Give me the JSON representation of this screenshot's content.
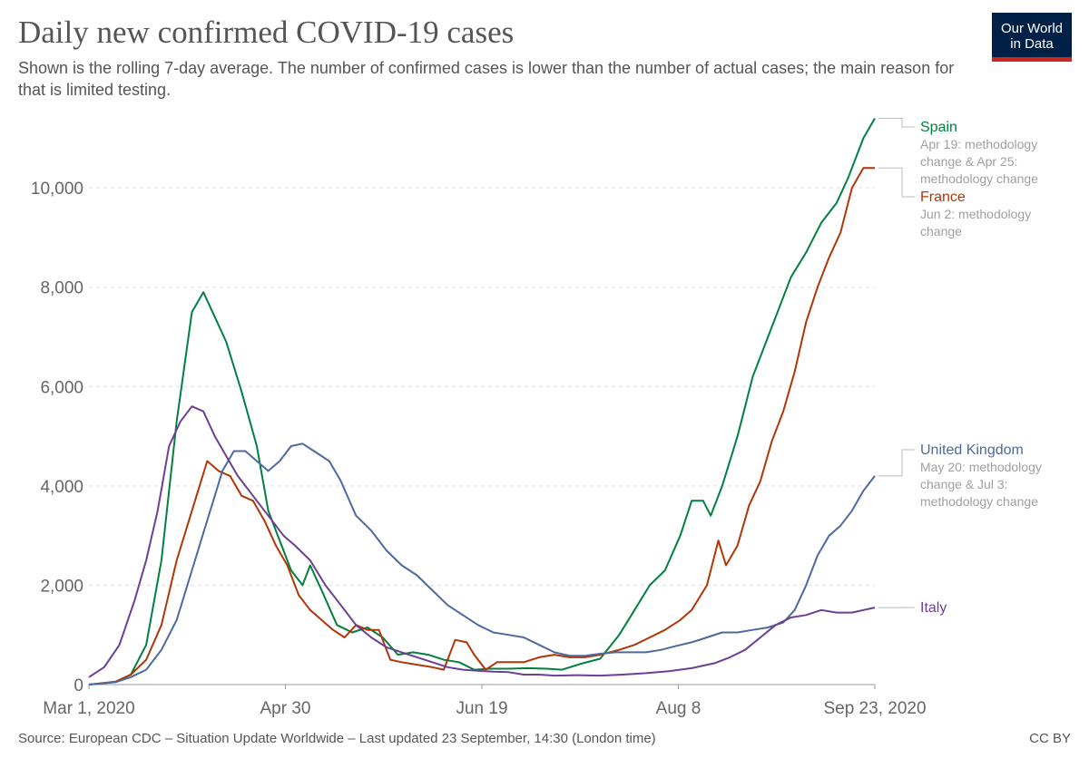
{
  "header": {
    "title": "Daily new confirmed COVID-19 cases",
    "subtitle": "Shown is the rolling 7-day average. The number of confirmed cases is lower than the number of actual cases; the main reason for that is limited testing."
  },
  "logo": {
    "line1": "Our World",
    "line2": "in Data",
    "bg_color": "#002147",
    "accent_color": "#ce261e"
  },
  "footer": {
    "source": "Source: European CDC – Situation Update Worldwide – Last updated 23 September, 14:30 (London time)",
    "license": "CC BY"
  },
  "chart_data": {
    "type": "line",
    "title": "Daily new confirmed COVID-19 cases",
    "xlabel": "",
    "ylabel": "",
    "x_tick_labels": [
      "Mar 1, 2020",
      "Apr 30",
      "Jun 19",
      "Aug 8",
      "Sep 23, 2020"
    ],
    "y_ticks": [
      0,
      2000,
      4000,
      6000,
      8000,
      10000
    ],
    "y_tick_labels": [
      "0",
      "2,000",
      "4,000",
      "6,000",
      "8,000",
      "10,000"
    ],
    "ylim": [
      0,
      11500
    ],
    "xlim": [
      "2020-03-01",
      "2020-09-23"
    ],
    "grid": true,
    "legend": "line-end labels at right",
    "series": [
      {
        "name": "Spain",
        "color": "#00813f",
        "annotation": [
          "Apr 19: methodology",
          "change & Apr 25:",
          "methodology change"
        ],
        "points": [
          [
            "2020-03-01",
            0
          ],
          [
            "2020-03-08",
            50
          ],
          [
            "2020-03-12",
            200
          ],
          [
            "2020-03-16",
            800
          ],
          [
            "2020-03-20",
            2500
          ],
          [
            "2020-03-24",
            5300
          ],
          [
            "2020-03-28",
            7500
          ],
          [
            "2020-03-31",
            7900
          ],
          [
            "2020-04-03",
            7400
          ],
          [
            "2020-04-06",
            6900
          ],
          [
            "2020-04-10",
            5900
          ],
          [
            "2020-04-14",
            4800
          ],
          [
            "2020-04-17",
            3500
          ],
          [
            "2020-04-20",
            2900
          ],
          [
            "2020-04-23",
            2300
          ],
          [
            "2020-04-26",
            2000
          ],
          [
            "2020-04-28",
            2400
          ],
          [
            "2020-05-01",
            1900
          ],
          [
            "2020-05-05",
            1200
          ],
          [
            "2020-05-09",
            1050
          ],
          [
            "2020-05-13",
            1150
          ],
          [
            "2020-05-17",
            950
          ],
          [
            "2020-05-21",
            600
          ],
          [
            "2020-05-25",
            650
          ],
          [
            "2020-05-29",
            600
          ],
          [
            "2020-06-02",
            500
          ],
          [
            "2020-06-06",
            450
          ],
          [
            "2020-06-10",
            300
          ],
          [
            "2020-06-14",
            320
          ],
          [
            "2020-06-19",
            320
          ],
          [
            "2020-06-24",
            330
          ],
          [
            "2020-06-29",
            320
          ],
          [
            "2020-07-03",
            300
          ],
          [
            "2020-07-08",
            420
          ],
          [
            "2020-07-13",
            520
          ],
          [
            "2020-07-18",
            1000
          ],
          [
            "2020-07-22",
            1500
          ],
          [
            "2020-07-26",
            2000
          ],
          [
            "2020-07-30",
            2300
          ],
          [
            "2020-08-03",
            3000
          ],
          [
            "2020-08-06",
            3700
          ],
          [
            "2020-08-09",
            3700
          ],
          [
            "2020-08-11",
            3400
          ],
          [
            "2020-08-14",
            4000
          ],
          [
            "2020-08-18",
            5000
          ],
          [
            "2020-08-22",
            6200
          ],
          [
            "2020-08-26",
            7000
          ],
          [
            "2020-08-29",
            7600
          ],
          [
            "2020-09-01",
            8200
          ],
          [
            "2020-09-05",
            8700
          ],
          [
            "2020-09-09",
            9300
          ],
          [
            "2020-09-13",
            9700
          ],
          [
            "2020-09-16",
            10200
          ],
          [
            "2020-09-20",
            11000
          ],
          [
            "2020-09-23",
            11400
          ]
        ]
      },
      {
        "name": "France",
        "color": "#b13507",
        "annotation": [
          "Jun 2: methodology",
          "change"
        ],
        "points": [
          [
            "2020-03-01",
            0
          ],
          [
            "2020-03-08",
            60
          ],
          [
            "2020-03-12",
            200
          ],
          [
            "2020-03-16",
            500
          ],
          [
            "2020-03-20",
            1200
          ],
          [
            "2020-03-24",
            2500
          ],
          [
            "2020-03-28",
            3500
          ],
          [
            "2020-04-01",
            4500
          ],
          [
            "2020-04-04",
            4300
          ],
          [
            "2020-04-07",
            4200
          ],
          [
            "2020-04-10",
            3800
          ],
          [
            "2020-04-13",
            3700
          ],
          [
            "2020-04-16",
            3300
          ],
          [
            "2020-04-19",
            2800
          ],
          [
            "2020-04-22",
            2400
          ],
          [
            "2020-04-25",
            1800
          ],
          [
            "2020-04-28",
            1500
          ],
          [
            "2020-05-01",
            1300
          ],
          [
            "2020-05-04",
            1100
          ],
          [
            "2020-05-07",
            950
          ],
          [
            "2020-05-10",
            1200
          ],
          [
            "2020-05-13",
            1100
          ],
          [
            "2020-05-16",
            1100
          ],
          [
            "2020-05-19",
            500
          ],
          [
            "2020-05-22",
            450
          ],
          [
            "2020-05-26",
            400
          ],
          [
            "2020-05-30",
            350
          ],
          [
            "2020-06-02",
            300
          ],
          [
            "2020-06-05",
            900
          ],
          [
            "2020-06-08",
            850
          ],
          [
            "2020-06-10",
            600
          ],
          [
            "2020-06-13",
            300
          ],
          [
            "2020-06-16",
            450
          ],
          [
            "2020-06-19",
            450
          ],
          [
            "2020-06-23",
            450
          ],
          [
            "2020-06-27",
            550
          ],
          [
            "2020-07-01",
            600
          ],
          [
            "2020-07-05",
            550
          ],
          [
            "2020-07-09",
            550
          ],
          [
            "2020-07-13",
            600
          ],
          [
            "2020-07-18",
            700
          ],
          [
            "2020-07-22",
            800
          ],
          [
            "2020-07-26",
            950
          ],
          [
            "2020-07-30",
            1100
          ],
          [
            "2020-08-03",
            1300
          ],
          [
            "2020-08-06",
            1500
          ],
          [
            "2020-08-10",
            2000
          ],
          [
            "2020-08-13",
            2900
          ],
          [
            "2020-08-15",
            2400
          ],
          [
            "2020-08-18",
            2800
          ],
          [
            "2020-08-21",
            3600
          ],
          [
            "2020-08-24",
            4100
          ],
          [
            "2020-08-27",
            4900
          ],
          [
            "2020-08-30",
            5500
          ],
          [
            "2020-09-02",
            6300
          ],
          [
            "2020-09-05",
            7300
          ],
          [
            "2020-09-08",
            8000
          ],
          [
            "2020-09-11",
            8600
          ],
          [
            "2020-09-14",
            9100
          ],
          [
            "2020-09-17",
            10000
          ],
          [
            "2020-09-20",
            10400
          ],
          [
            "2020-09-23",
            10400
          ]
        ]
      },
      {
        "name": "United Kingdom",
        "color": "#4c6a9c",
        "annotation": [
          "May 20: methodology",
          "change & Jul 3:",
          "methodology change"
        ],
        "points": [
          [
            "2020-03-01",
            0
          ],
          [
            "2020-03-08",
            50
          ],
          [
            "2020-03-12",
            150
          ],
          [
            "2020-03-16",
            300
          ],
          [
            "2020-03-20",
            700
          ],
          [
            "2020-03-24",
            1300
          ],
          [
            "2020-03-28",
            2300
          ],
          [
            "2020-04-01",
            3300
          ],
          [
            "2020-04-05",
            4300
          ],
          [
            "2020-04-08",
            4700
          ],
          [
            "2020-04-11",
            4700
          ],
          [
            "2020-04-14",
            4500
          ],
          [
            "2020-04-17",
            4300
          ],
          [
            "2020-04-20",
            4500
          ],
          [
            "2020-04-23",
            4800
          ],
          [
            "2020-04-26",
            4850
          ],
          [
            "2020-04-29",
            4700
          ],
          [
            "2020-05-03",
            4500
          ],
          [
            "2020-05-06",
            4100
          ],
          [
            "2020-05-10",
            3400
          ],
          [
            "2020-05-14",
            3100
          ],
          [
            "2020-05-18",
            2700
          ],
          [
            "2020-05-22",
            2400
          ],
          [
            "2020-05-26",
            2200
          ],
          [
            "2020-05-30",
            1900
          ],
          [
            "2020-06-03",
            1600
          ],
          [
            "2020-06-07",
            1400
          ],
          [
            "2020-06-11",
            1200
          ],
          [
            "2020-06-15",
            1050
          ],
          [
            "2020-06-19",
            1000
          ],
          [
            "2020-06-23",
            950
          ],
          [
            "2020-06-27",
            800
          ],
          [
            "2020-07-01",
            650
          ],
          [
            "2020-07-05",
            580
          ],
          [
            "2020-07-09",
            580
          ],
          [
            "2020-07-13",
            620
          ],
          [
            "2020-07-17",
            650
          ],
          [
            "2020-07-21",
            650
          ],
          [
            "2020-07-25",
            650
          ],
          [
            "2020-07-29",
            700
          ],
          [
            "2020-08-02",
            780
          ],
          [
            "2020-08-06",
            850
          ],
          [
            "2020-08-10",
            950
          ],
          [
            "2020-08-14",
            1050
          ],
          [
            "2020-08-18",
            1050
          ],
          [
            "2020-08-22",
            1100
          ],
          [
            "2020-08-26",
            1150
          ],
          [
            "2020-08-30",
            1250
          ],
          [
            "2020-09-02",
            1500
          ],
          [
            "2020-09-05",
            2000
          ],
          [
            "2020-09-08",
            2600
          ],
          [
            "2020-09-11",
            3000
          ],
          [
            "2020-09-14",
            3200
          ],
          [
            "2020-09-17",
            3500
          ],
          [
            "2020-09-20",
            3900
          ],
          [
            "2020-09-23",
            4200
          ]
        ]
      },
      {
        "name": "Italy",
        "color": "#6d3e91",
        "annotation": [],
        "points": [
          [
            "2020-03-01",
            150
          ],
          [
            "2020-03-05",
            350
          ],
          [
            "2020-03-09",
            800
          ],
          [
            "2020-03-13",
            1700
          ],
          [
            "2020-03-16",
            2500
          ],
          [
            "2020-03-19",
            3500
          ],
          [
            "2020-03-22",
            4800
          ],
          [
            "2020-03-25",
            5300
          ],
          [
            "2020-03-28",
            5600
          ],
          [
            "2020-03-31",
            5500
          ],
          [
            "2020-04-03",
            5000
          ],
          [
            "2020-04-06",
            4600
          ],
          [
            "2020-04-09",
            4200
          ],
          [
            "2020-04-12",
            3900
          ],
          [
            "2020-04-15",
            3600
          ],
          [
            "2020-04-18",
            3300
          ],
          [
            "2020-04-21",
            3000
          ],
          [
            "2020-04-24",
            2800
          ],
          [
            "2020-04-28",
            2500
          ],
          [
            "2020-05-02",
            2000
          ],
          [
            "2020-05-06",
            1600
          ],
          [
            "2020-05-10",
            1200
          ],
          [
            "2020-05-14",
            950
          ],
          [
            "2020-05-18",
            750
          ],
          [
            "2020-05-22",
            650
          ],
          [
            "2020-05-26",
            550
          ],
          [
            "2020-05-30",
            450
          ],
          [
            "2020-06-03",
            350
          ],
          [
            "2020-06-07",
            300
          ],
          [
            "2020-06-11",
            280
          ],
          [
            "2020-06-15",
            260
          ],
          [
            "2020-06-19",
            250
          ],
          [
            "2020-06-23",
            200
          ],
          [
            "2020-06-27",
            200
          ],
          [
            "2020-07-01",
            180
          ],
          [
            "2020-07-07",
            190
          ],
          [
            "2020-07-13",
            180
          ],
          [
            "2020-07-19",
            200
          ],
          [
            "2020-07-25",
            230
          ],
          [
            "2020-07-31",
            270
          ],
          [
            "2020-08-06",
            330
          ],
          [
            "2020-08-12",
            430
          ],
          [
            "2020-08-16",
            550
          ],
          [
            "2020-08-20",
            700
          ],
          [
            "2020-08-24",
            950
          ],
          [
            "2020-08-28",
            1200
          ],
          [
            "2020-09-01",
            1350
          ],
          [
            "2020-09-05",
            1400
          ],
          [
            "2020-09-09",
            1500
          ],
          [
            "2020-09-13",
            1450
          ],
          [
            "2020-09-17",
            1450
          ],
          [
            "2020-09-20",
            1500
          ],
          [
            "2020-09-23",
            1550
          ]
        ]
      }
    ]
  }
}
